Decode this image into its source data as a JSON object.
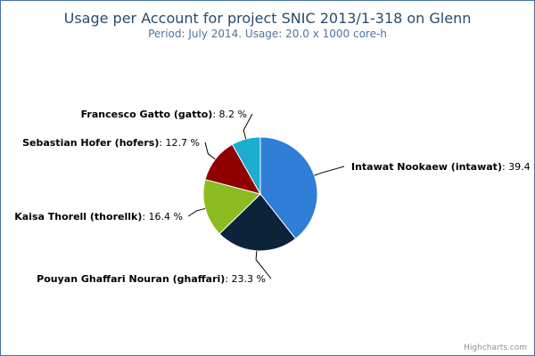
{
  "chart_data": {
    "type": "pie",
    "title": "Usage per Account for project SNIC 2013/1-318 on Glenn",
    "subtitle": "Period: July 2014. Usage: 20.0 x 1000 core-h",
    "slices": [
      {
        "name": "Intawat Nookaew (intawat)",
        "value": 39.4,
        "label": ": 39.4 %",
        "color": "#2f7ed8"
      },
      {
        "name": "Pouyan Ghaffari Nouran (ghaffari)",
        "value": 23.3,
        "label": ": 23.3 %",
        "color": "#0d233a"
      },
      {
        "name": "Kaisa Thorell (thorellk)",
        "value": 16.4,
        "label": ": 16.4 %",
        "color": "#8bbc21"
      },
      {
        "name": "Sebastian Hofer (hofers)",
        "value": 12.7,
        "label": ": 12.7 %",
        "color": "#910000"
      },
      {
        "name": "Francesco Gatto (gatto)",
        "value": 8.2,
        "label": ": 8.2 %",
        "color": "#1aadce"
      }
    ]
  },
  "credits": "Highcharts.com"
}
